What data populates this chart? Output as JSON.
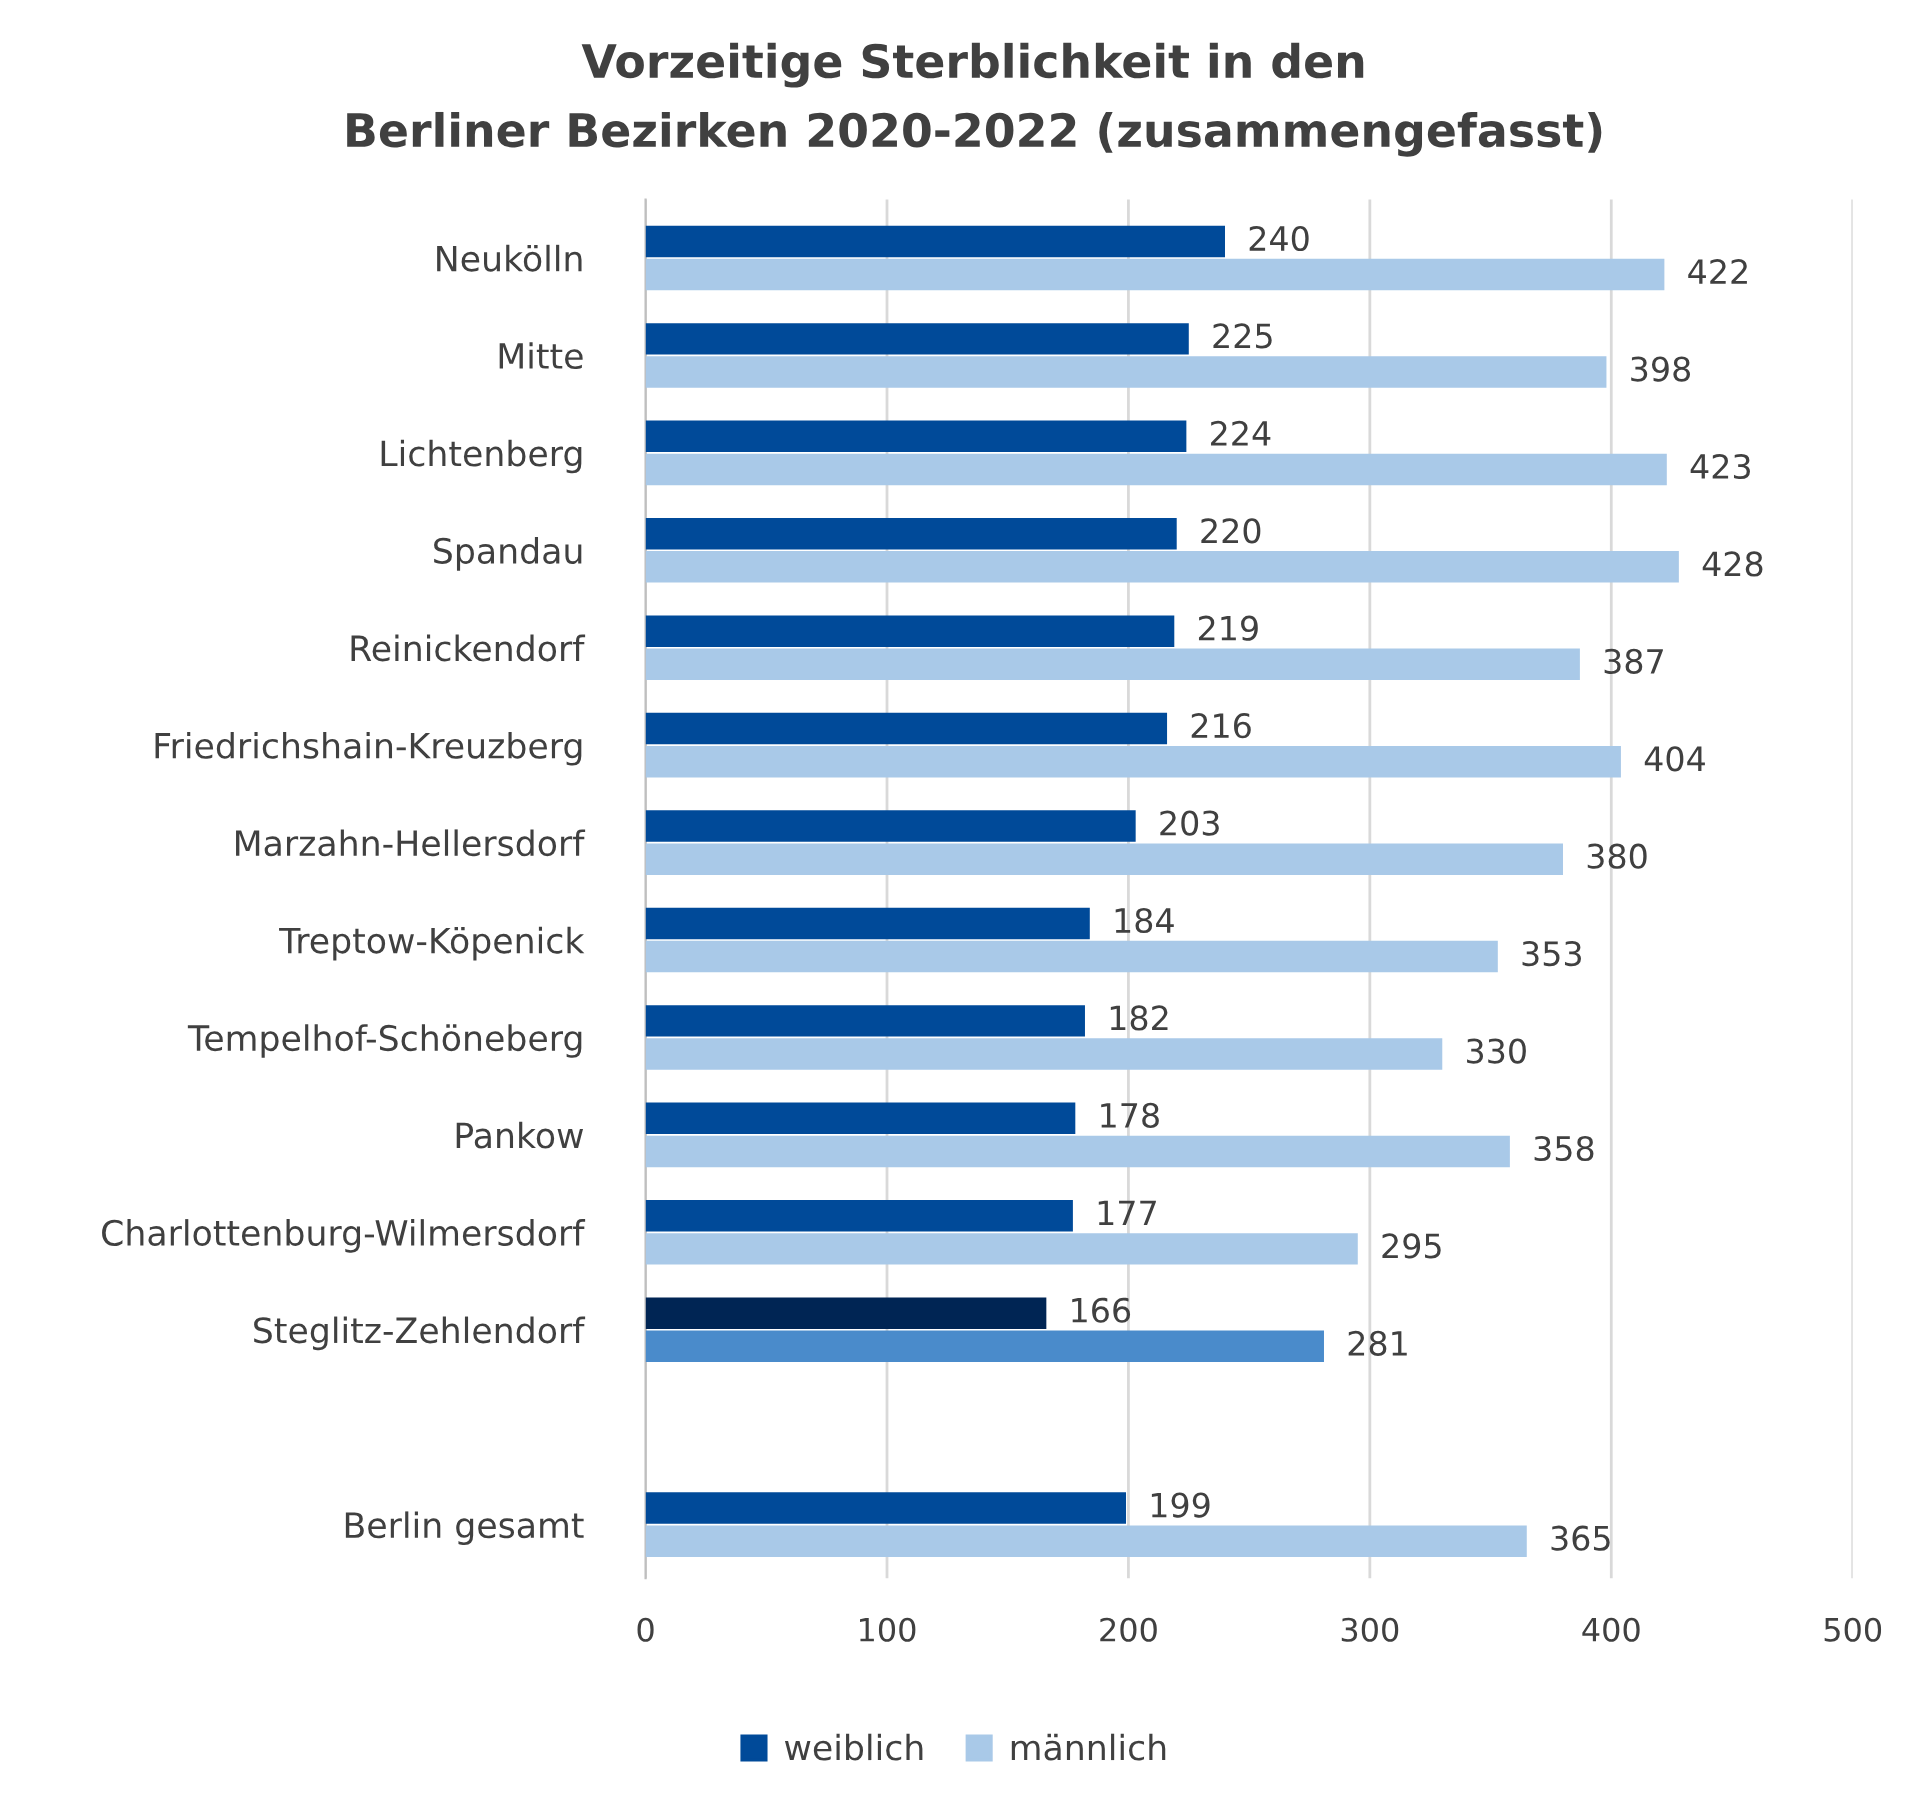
{
  "chart_data": {
    "type": "bar",
    "orientation": "horizontal",
    "title": "Vorzeitige Sterblichkeit in den\nBerliner Bezirken 2020-2022 (zusammengefasst)",
    "categories": [
      "Neukölln",
      "Mitte",
      "Lichtenberg",
      "Spandau",
      "Reinickendorf",
      "Friedrichshain-Kreuzberg",
      "Marzahn-Hellersdorf",
      "Treptow-Köpenick",
      "Tempelhof-Schöneberg",
      "Pankow",
      "Charlottenburg-Wilmersdorf",
      "Steglitz-Zehlendorf",
      null,
      "Berlin gesamt"
    ],
    "series": [
      {
        "name": "weiblich",
        "color": "#004a99",
        "colors": [
          "#004a99",
          "#004a99",
          "#004a99",
          "#004a99",
          "#004a99",
          "#004a99",
          "#004a99",
          "#004a99",
          "#004a99",
          "#004a99",
          "#004a99",
          "#002554",
          "#004a99",
          "#004a99"
        ],
        "values": [
          240,
          225,
          224,
          220,
          219,
          216,
          203,
          184,
          182,
          178,
          177,
          166,
          null,
          199
        ]
      },
      {
        "name": "männlich",
        "color": "#a9c9e8",
        "colors": [
          "#a9c9e8",
          "#a9c9e8",
          "#a9c9e8",
          "#a9c9e8",
          "#a9c9e8",
          "#a9c9e8",
          "#a9c9e8",
          "#a9c9e8",
          "#a9c9e8",
          "#a9c9e8",
          "#a9c9e8",
          "#4a8bcb",
          "#a9c9e8",
          "#a9c9e8"
        ],
        "values": [
          422,
          398,
          423,
          428,
          387,
          404,
          380,
          353,
          330,
          358,
          295,
          281,
          null,
          365
        ]
      }
    ],
    "xlim": [
      0,
      500
    ],
    "xticks": [
      0,
      100,
      200,
      300,
      400,
      500
    ],
    "grid": "x",
    "legend": "bottom",
    "data_labels": true
  }
}
